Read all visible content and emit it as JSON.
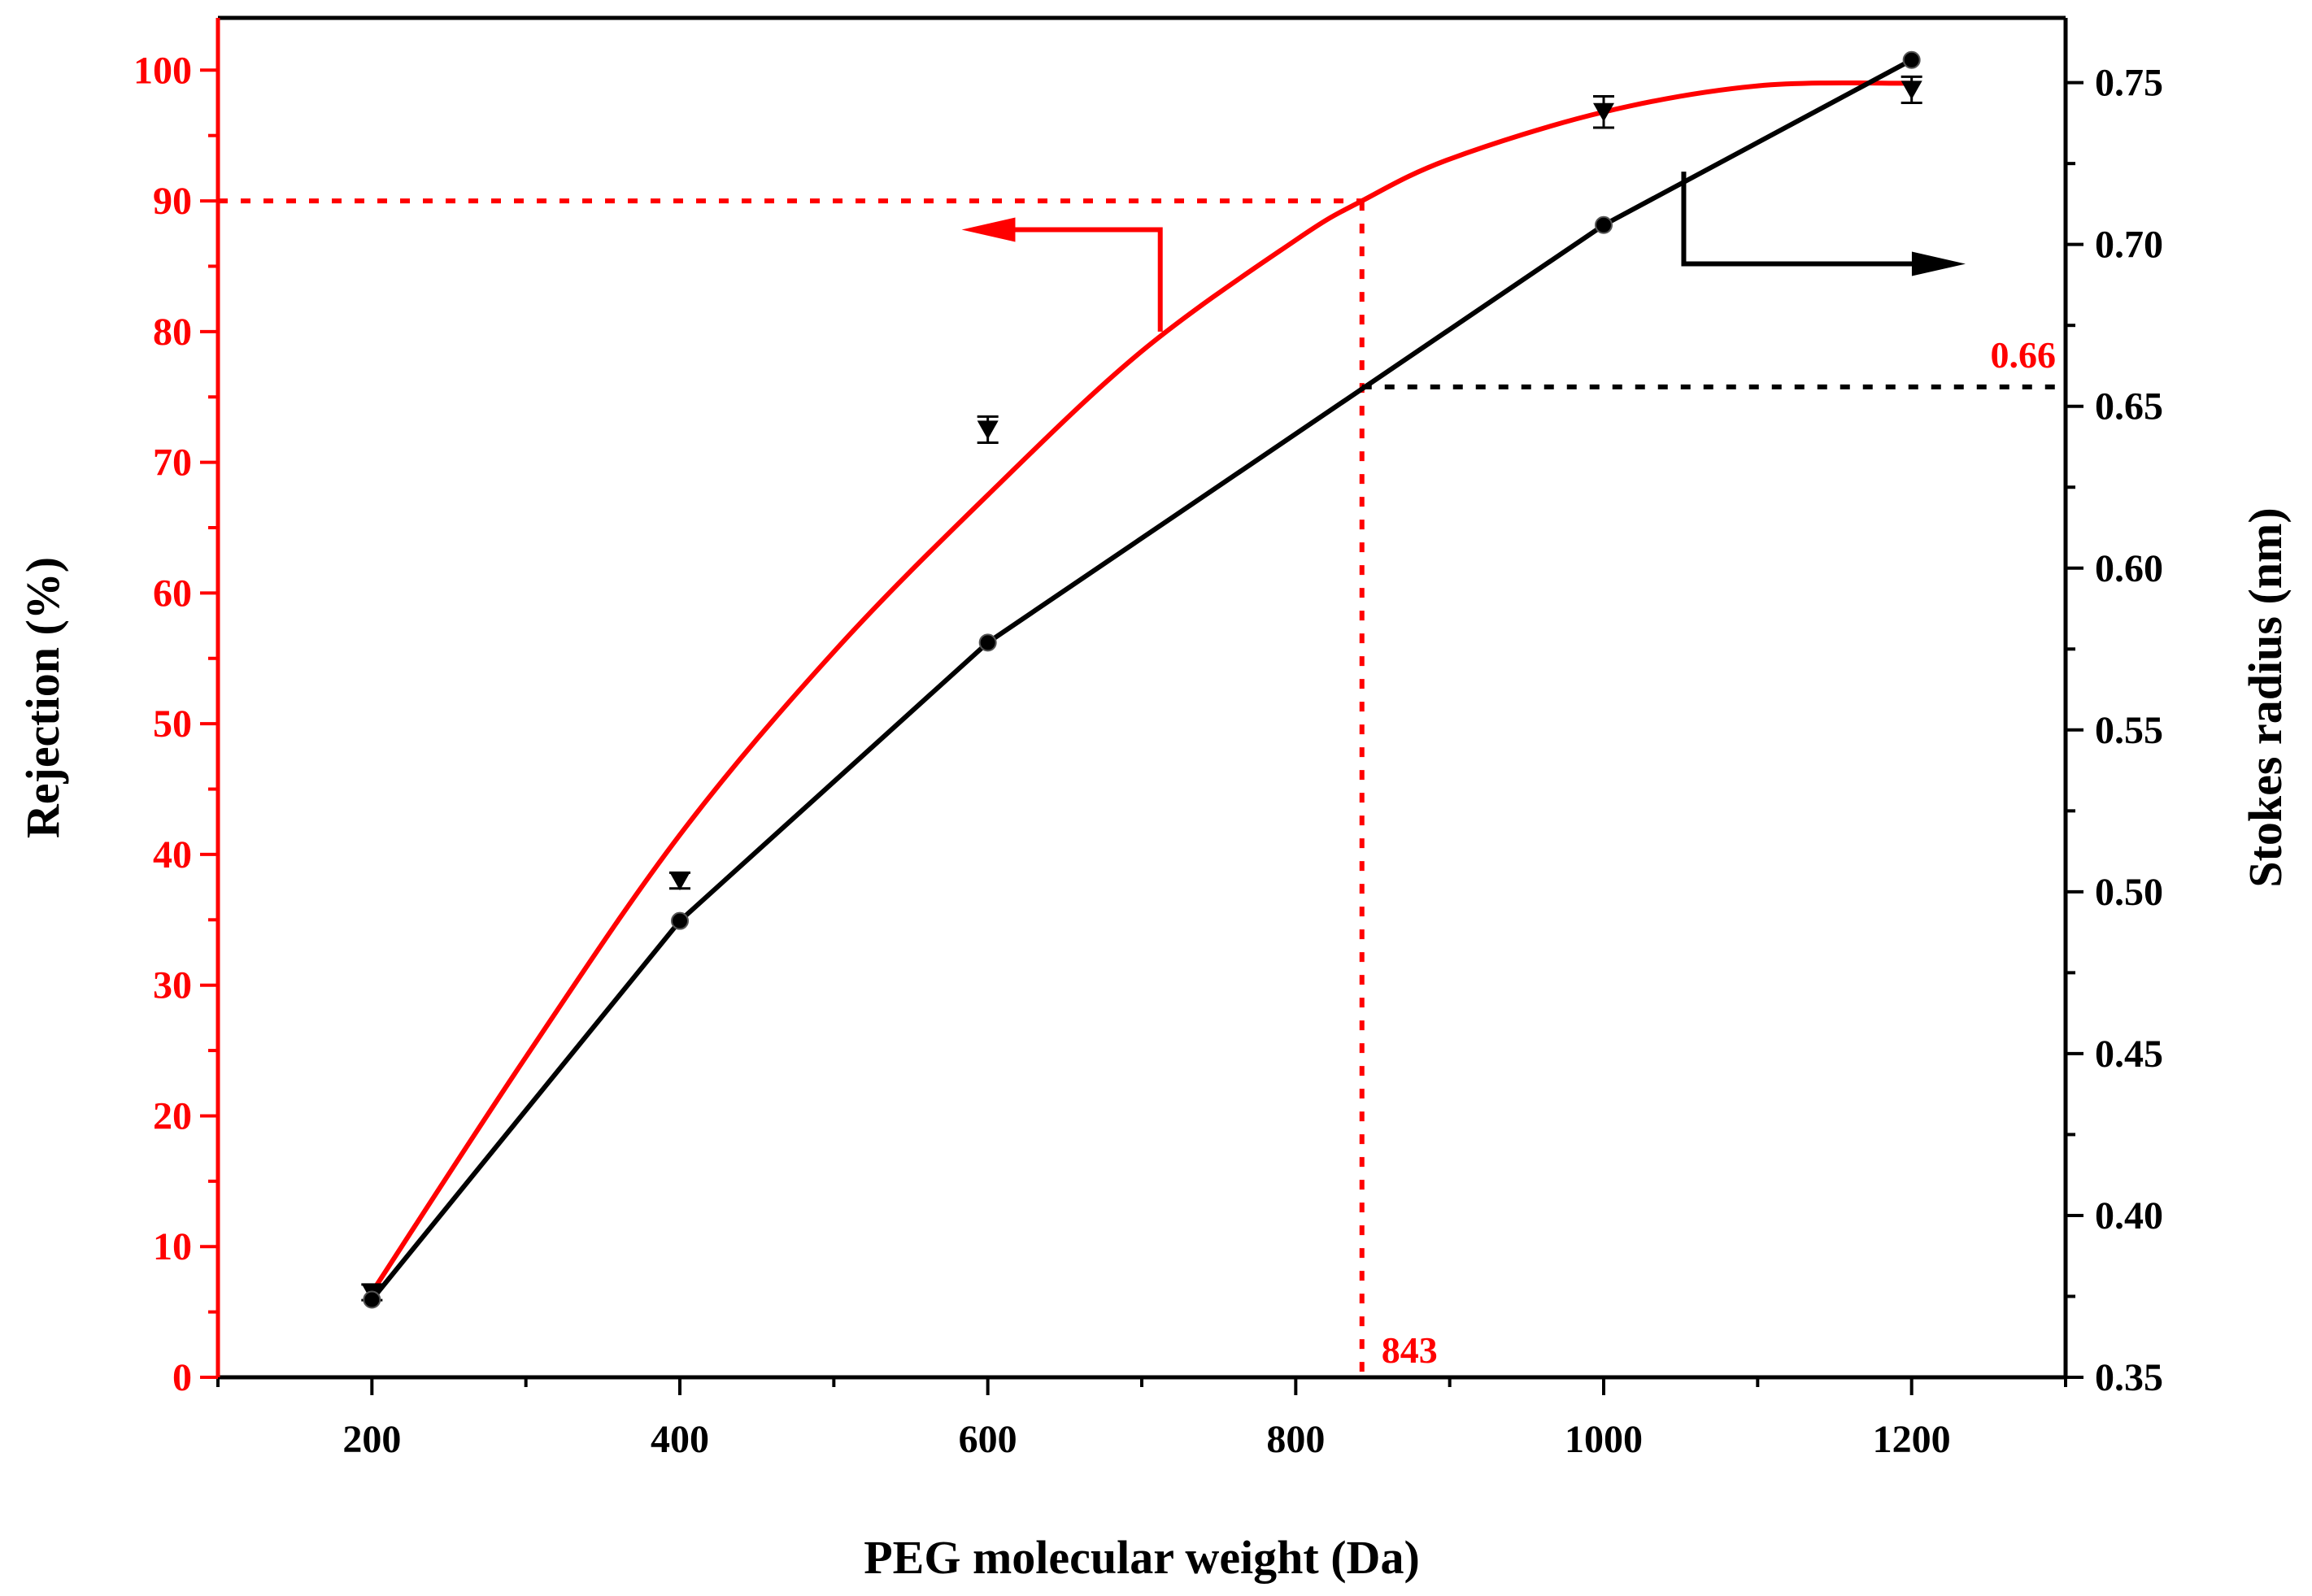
{
  "chart_data": {
    "type": "line",
    "xlabel": "PEG molecular weight (Da)",
    "ylabel_left": "Rejection (%)",
    "ylabel_right": "Stokes radius (nm)",
    "xlim": [
      100,
      1300
    ],
    "ylim_left": [
      0,
      104
    ],
    "ylim_right": [
      0.35,
      0.77
    ],
    "x_ticks": [
      200,
      400,
      600,
      800,
      1000,
      1200
    ],
    "y_left_ticks": [
      0,
      10,
      20,
      30,
      40,
      50,
      60,
      70,
      80,
      90,
      100
    ],
    "y_right_ticks": [
      0.35,
      0.4,
      0.45,
      0.5,
      0.55,
      0.6,
      0.65,
      0.7,
      0.75
    ],
    "series": [
      {
        "name": "Rejection",
        "axis": "left",
        "color": "#ff0000",
        "marker": "down-triangle",
        "x": [
          200,
          400,
          600,
          1000,
          1200
        ],
        "values": [
          6.5,
          38.0,
          72.5,
          96.8,
          98.5
        ],
        "errors": [
          0.6,
          0.6,
          1.0,
          1.2,
          1.0
        ],
        "fit_curve": {
          "x": [
            200,
            300,
            400,
            500,
            600,
            700,
            800,
            843,
            900,
            1000,
            1100,
            1200
          ],
          "values": [
            6.5,
            24.5,
            41.5,
            55.5,
            67.5,
            78.5,
            87.0,
            90.0,
            93.2,
            96.8,
            98.8,
            99.0
          ]
        }
      },
      {
        "name": "Stokes radius",
        "axis": "right",
        "color": "#000000",
        "marker": "circle",
        "x": [
          200,
          400,
          600,
          1000,
          1200
        ],
        "values": [
          0.374,
          0.491,
          0.577,
          0.706,
          0.757
        ]
      }
    ],
    "annotations": {
      "mwco_label": "843",
      "mwco_x": 843,
      "rejection_level": 90,
      "stokes_label": "0.66",
      "stokes_value": 0.656
    }
  }
}
